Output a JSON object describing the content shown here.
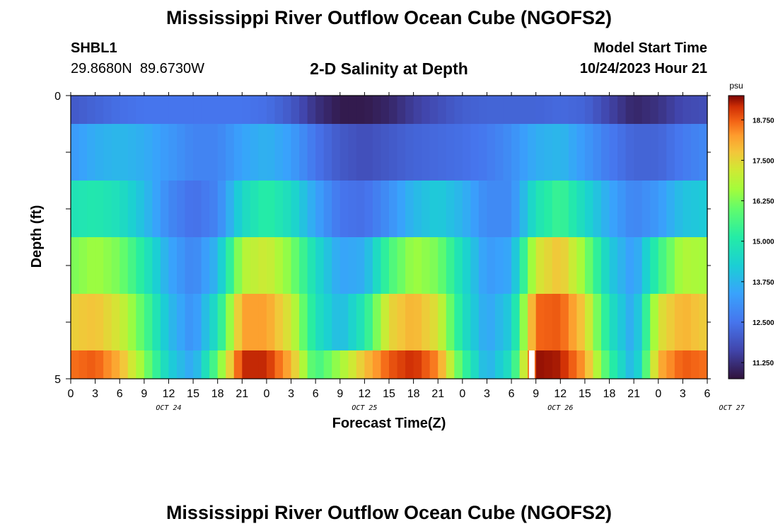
{
  "header": {
    "title": "Mississippi River Outflow Ocean Cube (NGOFS2)",
    "station_id": "SHBL1",
    "coords": "29.8680N  89.6730W",
    "subtitle": "2-D Salinity at Depth",
    "model_label": "Model Start Time",
    "model_time": "10/24/2023 Hour 21"
  },
  "footer": {
    "title": "Mississippi River Outflow Ocean Cube (NGOFS2)"
  },
  "chart_data": {
    "type": "heatmap",
    "title": "2-D Salinity at Depth",
    "xlabel": "Forecast Time(Z)",
    "ylabel": "Depth (ft)",
    "x_start": "2023-10-24 00Z",
    "x_step_hours": 3,
    "x_tick_labels": [
      "0",
      "3",
      "6",
      "9",
      "12",
      "15",
      "18",
      "21",
      "0",
      "3",
      "6",
      "9",
      "12",
      "15",
      "18",
      "21",
      "0",
      "3",
      "6",
      "9",
      "12",
      "15",
      "18",
      "21",
      "0",
      "3",
      "6"
    ],
    "date_labels": [
      {
        "label": "OCT 24",
        "hour": 12
      },
      {
        "label": "OCT 25",
        "hour": 36
      },
      {
        "label": "OCT 26",
        "hour": 60
      },
      {
        "label": "OCT 27",
        "hour": 81
      }
    ],
    "y_tick_labels": [
      "0",
      "5"
    ],
    "ylim": [
      0,
      5
    ],
    "colorbar": {
      "label": "psu",
      "range": [
        10.75,
        19.5
      ],
      "tick_values": [
        11.25,
        12.5,
        13.75,
        15.0,
        16.25,
        17.5,
        18.75
      ],
      "tick_labels": [
        "11.250",
        "12.500",
        "13.750",
        "15.000",
        "16.250",
        "17.500",
        "18.750"
      ]
    },
    "missing_value_hour": 56.5,
    "layers": [
      {
        "depth_range": [
          0,
          0.5
        ],
        "times": [
          0,
          3,
          6,
          9,
          12,
          15,
          18,
          21,
          24,
          27,
          30,
          33,
          36,
          39,
          42,
          45,
          48,
          51,
          54,
          57,
          60,
          63,
          66,
          69,
          72,
          75,
          78
        ],
        "values": [
          12.0,
          12.2,
          12.4,
          12.5,
          12.5,
          12.5,
          12.5,
          12.5,
          12.4,
          12.0,
          11.3,
          10.9,
          10.9,
          11.1,
          11.5,
          11.8,
          12.1,
          12.2,
          12.2,
          12.2,
          12.3,
          12.2,
          11.6,
          11.1,
          11.3,
          11.7,
          11.8
        ]
      },
      {
        "depth_range": [
          0.5,
          1.5
        ],
        "times": [
          0,
          3,
          6,
          9,
          12,
          15,
          18,
          21,
          24,
          27,
          30,
          33,
          36,
          39,
          42,
          45,
          48,
          51,
          54,
          57,
          60,
          63,
          66,
          69,
          72,
          75,
          78
        ],
        "values": [
          13.2,
          13.6,
          13.8,
          13.6,
          13.2,
          12.8,
          12.8,
          13.4,
          13.7,
          13.3,
          12.5,
          12.0,
          11.8,
          12.0,
          12.2,
          12.3,
          12.4,
          12.6,
          13.0,
          13.6,
          13.8,
          13.2,
          12.6,
          12.2,
          12.2,
          12.6,
          12.9
        ]
      },
      {
        "depth_range": [
          1.5,
          2.5
        ],
        "times": [
          0,
          3,
          6,
          9,
          12,
          15,
          18,
          21,
          24,
          27,
          30,
          33,
          36,
          39,
          42,
          45,
          48,
          51,
          54,
          57,
          60,
          63,
          66,
          69,
          72,
          75,
          78
        ],
        "values": [
          14.8,
          15.0,
          14.7,
          13.9,
          12.9,
          12.4,
          12.8,
          14.5,
          15.2,
          14.6,
          13.4,
          12.5,
          12.4,
          13.0,
          13.8,
          14.2,
          13.7,
          12.9,
          12.9,
          14.8,
          15.5,
          14.5,
          13.5,
          12.8,
          13.2,
          14.0,
          14.2
        ]
      },
      {
        "depth_range": [
          2.5,
          3.5
        ],
        "times": [
          0,
          3,
          6,
          9,
          12,
          15,
          18,
          21,
          24,
          27,
          30,
          33,
          36,
          39,
          42,
          45,
          48,
          51,
          54,
          57,
          60,
          63,
          66,
          69,
          72,
          75,
          78
        ],
        "values": [
          16.2,
          16.6,
          16.2,
          15.0,
          13.5,
          12.8,
          13.8,
          16.8,
          17.2,
          16.3,
          14.6,
          13.4,
          13.6,
          15.6,
          16.6,
          16.2,
          14.6,
          13.2,
          13.5,
          17.2,
          17.8,
          16.4,
          14.2,
          13.2,
          15.4,
          16.8,
          16.6
        ]
      },
      {
        "depth_range": [
          3.5,
          4.5
        ],
        "times": [
          0,
          3,
          6,
          9,
          12,
          15,
          18,
          21,
          24,
          27,
          30,
          33,
          36,
          39,
          42,
          45,
          48,
          51,
          54,
          57,
          60,
          63,
          66,
          69,
          72,
          75,
          78
        ],
        "values": [
          17.6,
          17.8,
          17.2,
          15.8,
          13.9,
          13.0,
          14.8,
          18.2,
          18.2,
          17.2,
          14.8,
          13.8,
          15.0,
          17.5,
          18.0,
          17.3,
          14.8,
          13.4,
          14.2,
          18.7,
          18.8,
          17.6,
          14.8,
          13.4,
          17.3,
          18.0,
          17.6
        ]
      },
      {
        "depth_range": [
          4.5,
          5
        ],
        "times": [
          0,
          3,
          6,
          9,
          12,
          15,
          18,
          21,
          24,
          27,
          30,
          33,
          36,
          39,
          42,
          45,
          48,
          51,
          54,
          57,
          60,
          63,
          66,
          69,
          72,
          75,
          78
        ],
        "values": [
          18.6,
          18.8,
          18.0,
          16.4,
          14.3,
          13.4,
          16.0,
          19.2,
          19.2,
          18.0,
          15.5,
          16.6,
          17.8,
          18.8,
          19.2,
          18.4,
          15.6,
          13.6,
          14.8,
          19.4,
          19.3,
          18.2,
          15.4,
          13.6,
          18.0,
          18.8,
          18.6
        ]
      }
    ]
  }
}
